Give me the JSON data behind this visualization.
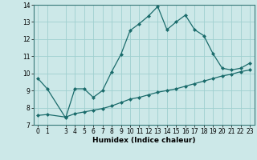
{
  "xlabel": "Humidex (Indice chaleur)",
  "background_color": "#cce8e8",
  "grid_color": "#9fcfcf",
  "line_color": "#1a6b6b",
  "x_line1": [
    0,
    1,
    3,
    4,
    5,
    6,
    7,
    8,
    9,
    10,
    11,
    12,
    13,
    14,
    15,
    16,
    17,
    18,
    19,
    20,
    21,
    22,
    23
  ],
  "y_line1": [
    9.7,
    9.1,
    7.4,
    9.1,
    9.1,
    8.6,
    9.0,
    10.1,
    11.1,
    12.5,
    12.9,
    13.35,
    13.9,
    12.55,
    13.0,
    13.4,
    12.55,
    12.2,
    11.15,
    10.3,
    10.2,
    10.3,
    10.6
  ],
  "x_line2": [
    0,
    1,
    3,
    4,
    5,
    6,
    7,
    8,
    9,
    10,
    11,
    12,
    13,
    14,
    15,
    16,
    17,
    18,
    19,
    20,
    21,
    22,
    23
  ],
  "y_line2": [
    7.55,
    7.6,
    7.45,
    7.65,
    7.75,
    7.85,
    7.95,
    8.1,
    8.3,
    8.5,
    8.6,
    8.75,
    8.9,
    9.0,
    9.1,
    9.25,
    9.4,
    9.55,
    9.7,
    9.85,
    9.95,
    10.1,
    10.2
  ],
  "xlim": [
    -0.5,
    23.5
  ],
  "ylim": [
    7,
    14
  ],
  "yticks": [
    7,
    8,
    9,
    10,
    11,
    12,
    13,
    14
  ],
  "xticks": [
    0,
    1,
    3,
    4,
    5,
    6,
    7,
    8,
    9,
    10,
    11,
    12,
    13,
    14,
    15,
    16,
    17,
    18,
    19,
    20,
    21,
    22,
    23
  ],
  "tick_fontsize": 5.5,
  "xlabel_fontsize": 6.5,
  "markersize": 2,
  "linewidth": 0.9
}
